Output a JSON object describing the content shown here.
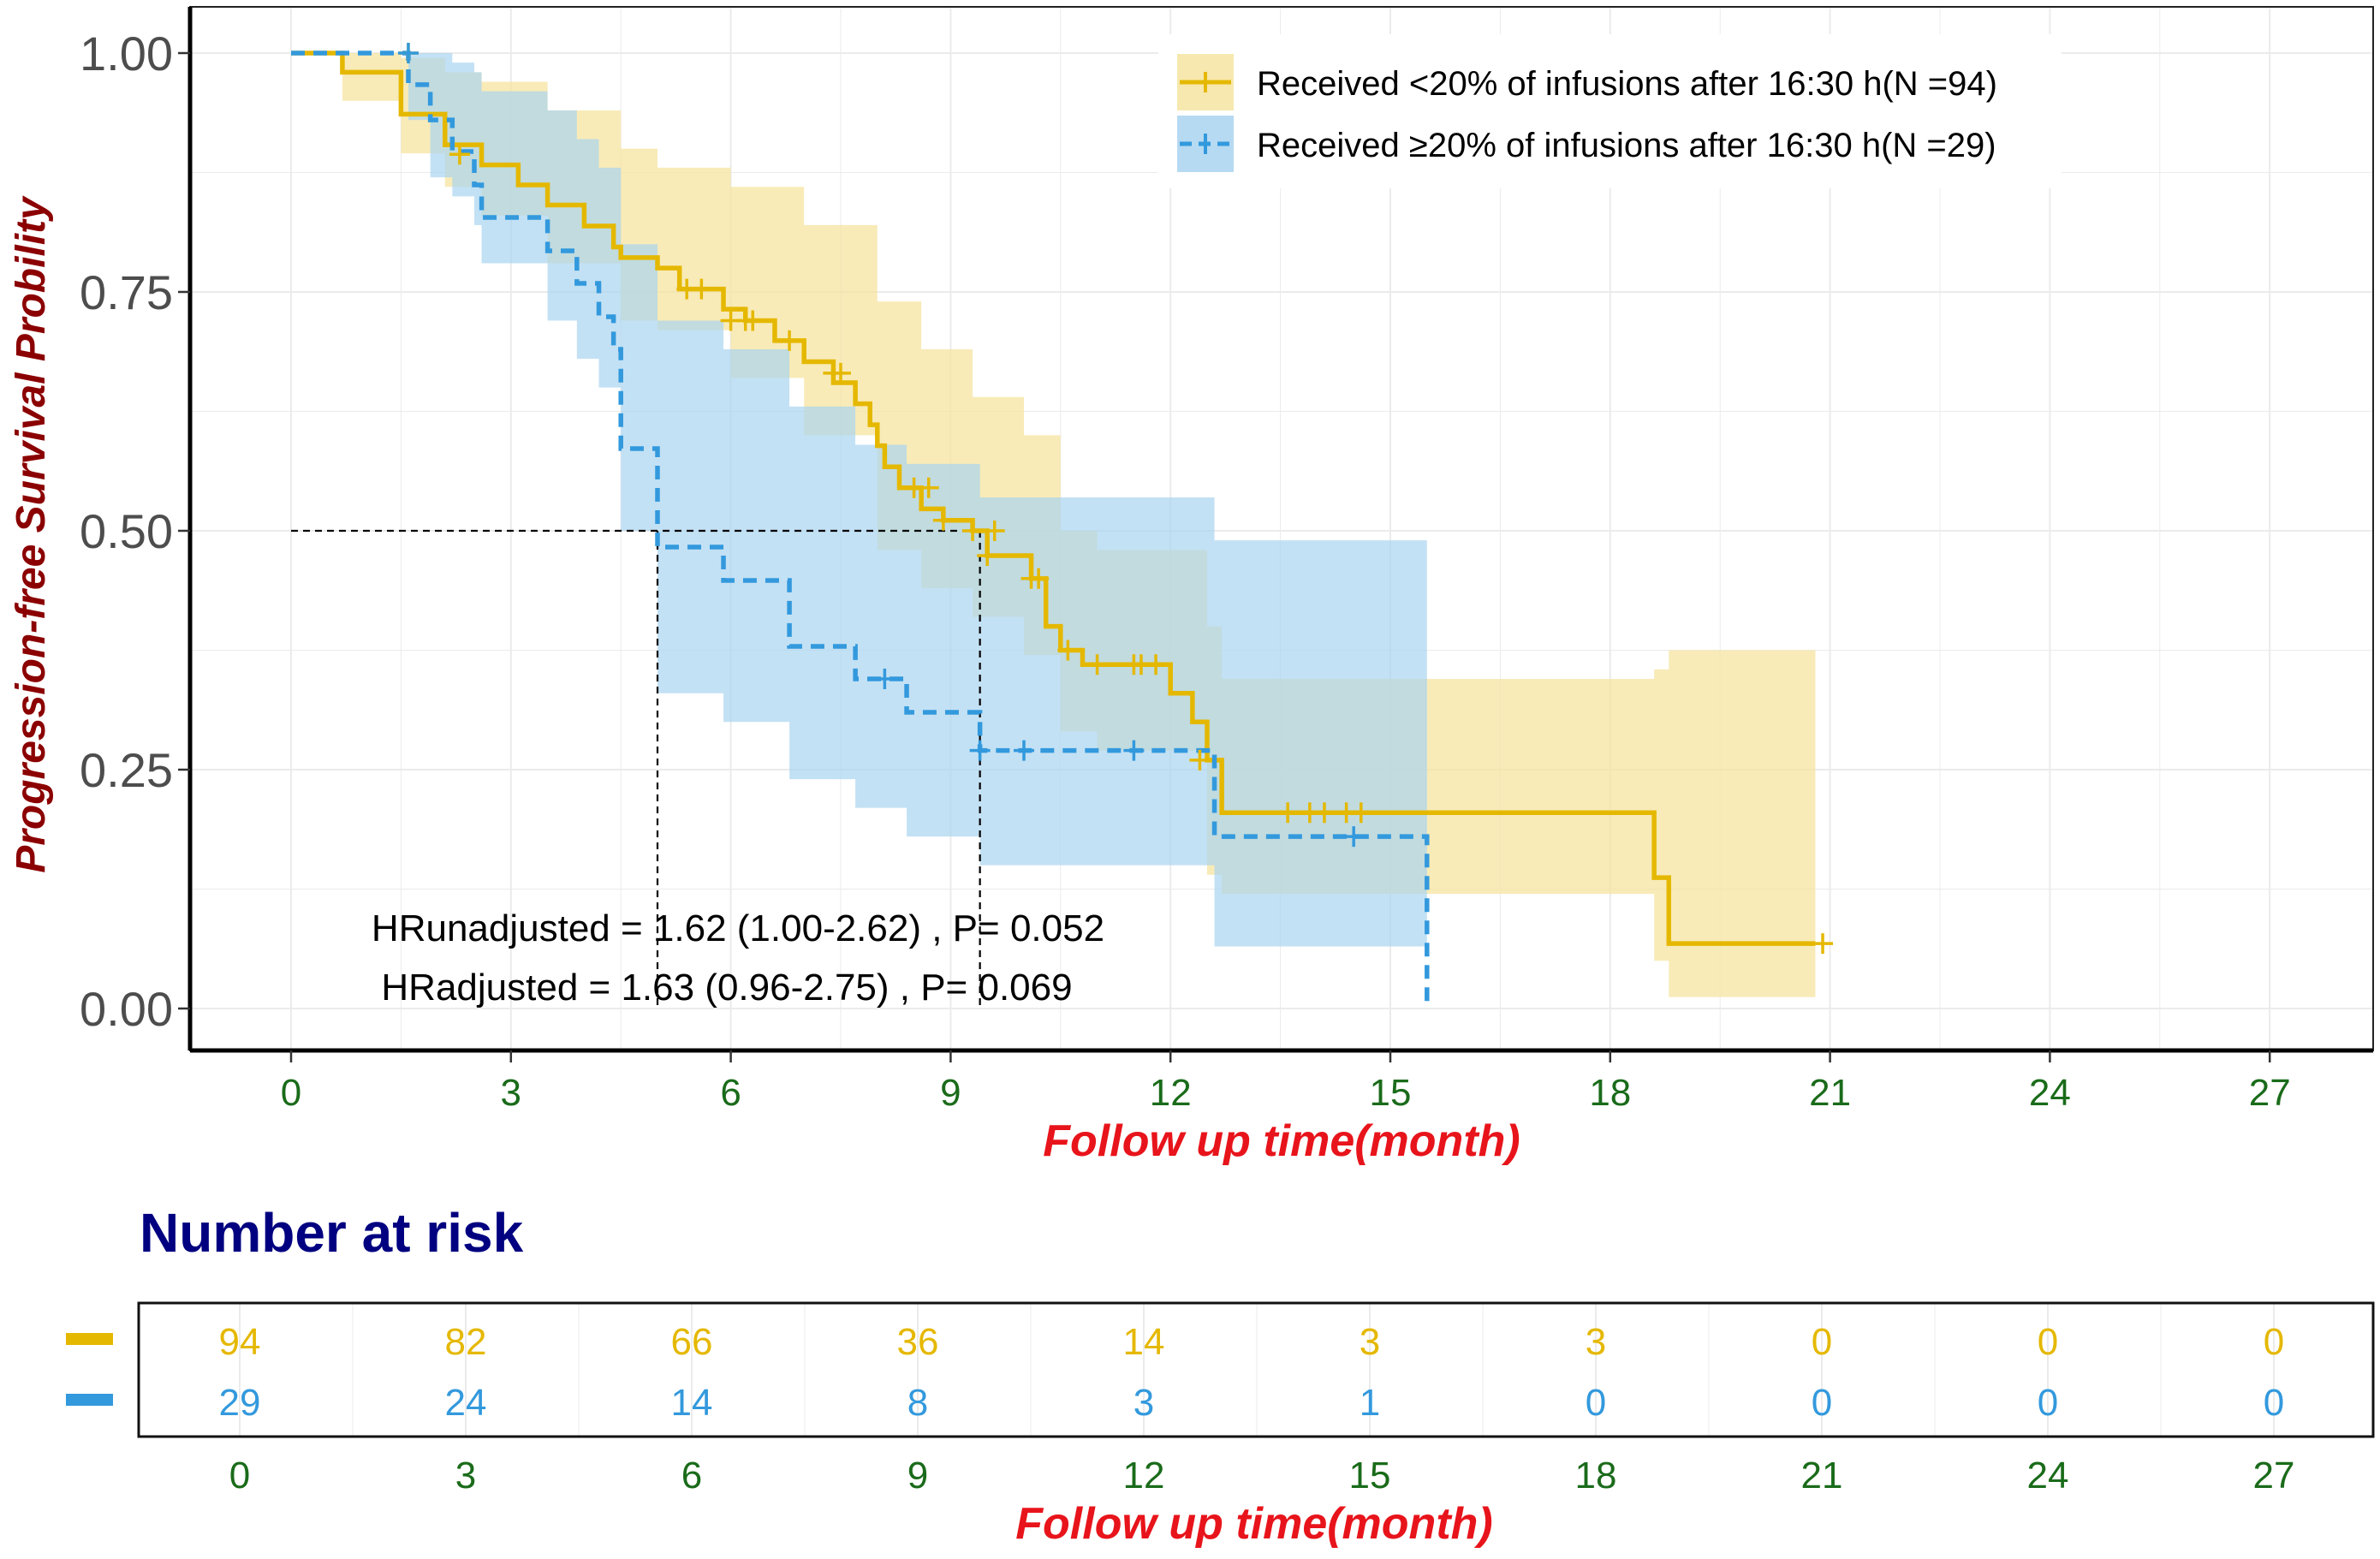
{
  "colors": {
    "yellow": "#E5B800",
    "yellow_band": "#F5E4A0",
    "blue": "#3399DD",
    "blue_band": "#A9D4F0",
    "green_tick": "#1A6B1A",
    "red_label": "#E8141B",
    "dark_red_label": "#8B0000",
    "navy": "#000080",
    "axis_text": "#4D4D4D"
  },
  "chart_data": {
    "type": "line",
    "subtype": "kaplan-meier survival curve",
    "title": "",
    "xlabel": "Follow up time(month)",
    "ylabel": "Progression-free Survival Probility",
    "xlim": [
      -0.5,
      28.3
    ],
    "ylim": [
      -0.045,
      1.05
    ],
    "x_ticks": [
      0,
      3,
      6,
      9,
      12,
      15,
      18,
      21,
      24,
      27
    ],
    "y_ticks": [
      0,
      0.25,
      0.5,
      0.75,
      1.0
    ],
    "y_tick_labels": [
      "0.00",
      "0.25",
      "0.50",
      "0.75",
      "1.00"
    ],
    "grid": true,
    "legend_position": "top-right",
    "series": [
      {
        "name": "Received <20% of infusions after 16:30 h(N =94)",
        "style": "solid",
        "color_key": "yellow",
        "band_color_key": "yellow_band",
        "steps": [
          [
            0,
            1.0
          ],
          [
            0.7,
            0.98
          ],
          [
            1.5,
            0.957
          ],
          [
            1.5,
            0.936
          ],
          [
            2.1,
            0.904
          ],
          [
            2.6,
            0.883
          ],
          [
            3.1,
            0.862
          ],
          [
            3.5,
            0.841
          ],
          [
            4.0,
            0.819
          ],
          [
            4.4,
            0.797
          ],
          [
            4.5,
            0.786
          ],
          [
            5.0,
            0.775
          ],
          [
            5.3,
            0.753
          ],
          [
            5.9,
            0.732
          ],
          [
            6.2,
            0.72
          ],
          [
            6.6,
            0.699
          ],
          [
            7.0,
            0.677
          ],
          [
            7.4,
            0.655
          ],
          [
            7.7,
            0.633
          ],
          [
            7.9,
            0.611
          ],
          [
            8.0,
            0.589
          ],
          [
            8.1,
            0.567
          ],
          [
            8.3,
            0.545
          ],
          [
            8.6,
            0.523
          ],
          [
            8.9,
            0.511
          ],
          [
            9.3,
            0.5
          ],
          [
            9.5,
            0.474
          ],
          [
            10.1,
            0.45
          ],
          [
            10.3,
            0.4
          ],
          [
            10.5,
            0.375
          ],
          [
            10.8,
            0.36
          ],
          [
            12.0,
            0.33
          ],
          [
            12.3,
            0.3
          ],
          [
            12.5,
            0.26
          ],
          [
            12.7,
            0.205
          ],
          [
            18.6,
            0.137
          ],
          [
            18.8,
            0.068
          ],
          [
            20.8,
            0.068
          ]
        ],
        "censors": [
          [
            1.6,
            1.0
          ],
          [
            2.3,
            0.894
          ],
          [
            5.4,
            0.753
          ],
          [
            5.6,
            0.753
          ],
          [
            6.0,
            0.72
          ],
          [
            6.2,
            0.72
          ],
          [
            6.3,
            0.72
          ],
          [
            6.8,
            0.699
          ],
          [
            7.4,
            0.665
          ],
          [
            7.5,
            0.665
          ],
          [
            8.5,
            0.545
          ],
          [
            8.7,
            0.545
          ],
          [
            8.9,
            0.511
          ],
          [
            9.3,
            0.5
          ],
          [
            9.6,
            0.5
          ],
          [
            9.5,
            0.474
          ],
          [
            10.1,
            0.45
          ],
          [
            10.2,
            0.45
          ],
          [
            10.6,
            0.375
          ],
          [
            11.0,
            0.36
          ],
          [
            11.5,
            0.36
          ],
          [
            11.6,
            0.36
          ],
          [
            11.8,
            0.36
          ],
          [
            12.4,
            0.26
          ],
          [
            13.6,
            0.205
          ],
          [
            13.9,
            0.205
          ],
          [
            14.1,
            0.205
          ],
          [
            14.4,
            0.205
          ],
          [
            14.6,
            0.205
          ],
          [
            20.9,
            0.068
          ]
        ],
        "band": [
          [
            0,
            1.0,
            1.0
          ],
          [
            0.7,
            1.0,
            0.95
          ],
          [
            1.5,
            0.995,
            0.895
          ],
          [
            2.1,
            0.98,
            0.86
          ],
          [
            2.6,
            0.97,
            0.83
          ],
          [
            3.5,
            0.94,
            0.78
          ],
          [
            4.5,
            0.9,
            0.72
          ],
          [
            5.0,
            0.88,
            0.71
          ],
          [
            6.0,
            0.86,
            0.66
          ],
          [
            7.0,
            0.82,
            0.6
          ],
          [
            8.0,
            0.74,
            0.48
          ],
          [
            8.6,
            0.69,
            0.44
          ],
          [
            9.3,
            0.64,
            0.41
          ],
          [
            10.0,
            0.6,
            0.37
          ],
          [
            10.5,
            0.5,
            0.29
          ],
          [
            11.0,
            0.48,
            0.27
          ],
          [
            12.5,
            0.4,
            0.14
          ],
          [
            12.7,
            0.345,
            0.12
          ],
          [
            15.5,
            0.345,
            0.12
          ],
          [
            18.6,
            0.355,
            0.05
          ],
          [
            18.8,
            0.375,
            0.012
          ],
          [
            20.8,
            0.375,
            0.012
          ]
        ],
        "median_months": 9.4
      },
      {
        "name": "Received ≥20% of infusions after 16:30 h(N =29)",
        "style": "dashed",
        "color_key": "blue",
        "band_color_key": "blue_band",
        "steps": [
          [
            0,
            1.0
          ],
          [
            1.6,
            0.967
          ],
          [
            1.9,
            0.93
          ],
          [
            2.2,
            0.897
          ],
          [
            2.5,
            0.862
          ],
          [
            2.6,
            0.828
          ],
          [
            3.5,
            0.793
          ],
          [
            3.9,
            0.759
          ],
          [
            4.2,
            0.724
          ],
          [
            4.4,
            0.69
          ],
          [
            4.5,
            0.586
          ],
          [
            5.0,
            0.483
          ],
          [
            5.9,
            0.448
          ],
          [
            6.8,
            0.379
          ],
          [
            7.7,
            0.345
          ],
          [
            8.4,
            0.31
          ],
          [
            9.4,
            0.27
          ],
          [
            12.6,
            0.18
          ],
          [
            15.5,
            0.0
          ]
        ],
        "censors": [
          [
            1.6,
            1.0
          ],
          [
            8.1,
            0.345
          ],
          [
            9.4,
            0.27
          ],
          [
            10.0,
            0.27
          ],
          [
            11.5,
            0.27
          ],
          [
            14.5,
            0.18
          ]
        ],
        "band": [
          [
            0,
            1.0,
            1.0
          ],
          [
            1.6,
            1.0,
            0.93
          ],
          [
            1.9,
            1.0,
            0.87
          ],
          [
            2.2,
            0.99,
            0.85
          ],
          [
            2.5,
            0.98,
            0.82
          ],
          [
            2.6,
            0.96,
            0.78
          ],
          [
            3.5,
            0.94,
            0.72
          ],
          [
            3.9,
            0.91,
            0.68
          ],
          [
            4.2,
            0.88,
            0.65
          ],
          [
            4.5,
            0.8,
            0.5
          ],
          [
            5.0,
            0.72,
            0.33
          ],
          [
            5.9,
            0.69,
            0.3
          ],
          [
            6.8,
            0.63,
            0.24
          ],
          [
            7.7,
            0.59,
            0.21
          ],
          [
            8.4,
            0.57,
            0.18
          ],
          [
            9.4,
            0.535,
            0.15
          ],
          [
            12.6,
            0.49,
            0.065
          ],
          [
            15.5,
            0.49,
            0.065
          ]
        ],
        "median_months": 5.0
      }
    ],
    "median_reference_y": 0.5,
    "annotations": [
      "HRunadjusted = 1.62 (1.00-2.62) , P= 0.052",
      "HRadjusted = 1.63 (0.96-2.75) , P= 0.069"
    ]
  },
  "risk_table": {
    "title": "Number at risk",
    "xlabel": "Follow up time(month)",
    "times": [
      0,
      3,
      6,
      9,
      12,
      15,
      18,
      21,
      24,
      27
    ],
    "rows": [
      {
        "color_key": "yellow",
        "counts": [
          94,
          82,
          66,
          36,
          14,
          3,
          3,
          0,
          0,
          0
        ]
      },
      {
        "color_key": "blue",
        "counts": [
          29,
          24,
          14,
          8,
          3,
          1,
          0,
          0,
          0,
          0
        ]
      }
    ]
  }
}
